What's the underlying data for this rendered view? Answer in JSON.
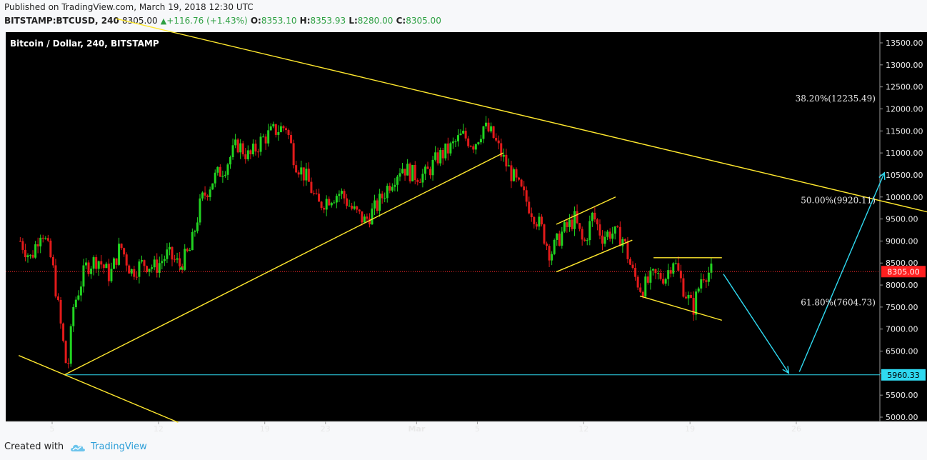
{
  "header": {
    "published": "Published on TradingView.com, March 19, 2018 12:30 UTC",
    "symbol": "BITSTAMP:BTCUSD, 240",
    "last": "8305.00",
    "change": "+116.76 (+1.43%)",
    "open_label": "O:",
    "open": "8353.10",
    "high_label": "H:",
    "high": "8353.93",
    "low_label": "L:",
    "low": "8280.00",
    "close_label": "C:",
    "close": "8305.00"
  },
  "footer": {
    "created_with": "Created with",
    "brand": "TradingView"
  },
  "colors": {
    "up": "#21d321",
    "down": "#e21a1a",
    "trend": "#ffe82e",
    "support": "#2fd9f0",
    "price_tag": "#ff1f1f",
    "background": "#000000"
  },
  "chart_data": {
    "type": "candlestick",
    "title": "Bitcoin / Dollar, 240, BITSTAMP",
    "xlabel": "",
    "ylabel": "",
    "ylim": [
      4920,
      13900
    ],
    "y_ticks": [
      5000,
      5500,
      6000,
      6500,
      7000,
      7500,
      8000,
      8500,
      9000,
      9500,
      10000,
      10500,
      11000,
      11500,
      12000,
      12500,
      13000,
      13500
    ],
    "y_tick_labels": [
      "5000.00",
      "5500.00",
      "6000.00",
      "6500.00",
      "7000.00",
      "7500.00",
      "8000.00",
      "8500.00",
      "9000.00",
      "9500.00",
      "10000.00",
      "10500.00",
      "11000.00",
      "11500.00",
      "12000.00",
      "12500.00",
      "13000.00",
      "13500.00"
    ],
    "x_day_range": [
      2.9,
      31.8
    ],
    "x_ticks": [
      {
        "day": 5,
        "label": "5"
      },
      {
        "day": 12,
        "label": "12"
      },
      {
        "day": 19,
        "label": "19"
      },
      {
        "day": 23,
        "label": "23"
      },
      {
        "day": 29,
        "label": "Mar"
      },
      {
        "day": 33,
        "label": "5"
      },
      {
        "day": 40,
        "label": "12"
      },
      {
        "day": 47,
        "label": "19"
      },
      {
        "day": 54,
        "label": "26"
      }
    ],
    "x_axis_note": "days counted from Feb 1 2018 (Mar 1 = 29)",
    "price_path": [
      [
        2.9,
        9000
      ],
      [
        3.6,
        8600
      ],
      [
        4.3,
        9300
      ],
      [
        5.0,
        8500
      ],
      [
        5.6,
        7000
      ],
      [
        6.0,
        6000
      ],
      [
        6.4,
        7500
      ],
      [
        7.2,
        8400
      ],
      [
        8.0,
        8600
      ],
      [
        8.8,
        8200
      ],
      [
        9.5,
        8900
      ],
      [
        10.2,
        8300
      ],
      [
        11.0,
        8500
      ],
      [
        11.8,
        8400
      ],
      [
        12.6,
        8700
      ],
      [
        13.4,
        8450
      ],
      [
        14.1,
        8800
      ],
      [
        14.8,
        9900
      ],
      [
        15.6,
        10400
      ],
      [
        16.4,
        10700
      ],
      [
        17.2,
        11200
      ],
      [
        18.0,
        10900
      ],
      [
        18.8,
        11300
      ],
      [
        19.6,
        11500
      ],
      [
        20.4,
        11600
      ],
      [
        21.0,
        10800
      ],
      [
        21.8,
        10400
      ],
      [
        22.5,
        9800
      ],
      [
        23.3,
        10000
      ],
      [
        24.0,
        10100
      ],
      [
        24.8,
        9700
      ],
      [
        25.6,
        9450
      ],
      [
        26.4,
        9800
      ],
      [
        27.2,
        10300
      ],
      [
        28.0,
        10700
      ],
      [
        28.8,
        10500
      ],
      [
        29.6,
        10500
      ],
      [
        30.4,
        10900
      ],
      [
        31.2,
        11100
      ],
      [
        32.0,
        11400
      ],
      [
        32.8,
        11200
      ],
      [
        33.4,
        11600
      ],
      [
        34.0,
        11400
      ],
      [
        34.8,
        10800
      ],
      [
        35.6,
        10300
      ],
      [
        36.4,
        9800
      ],
      [
        37.2,
        9300
      ],
      [
        37.8,
        8700
      ],
      [
        38.6,
        9200
      ],
      [
        39.4,
        9500
      ],
      [
        40.0,
        8900
      ],
      [
        40.6,
        9600
      ],
      [
        41.2,
        9100
      ],
      [
        41.8,
        9200
      ],
      [
        42.6,
        9050
      ],
      [
        43.2,
        8300
      ],
      [
        43.8,
        7900
      ],
      [
        44.6,
        8200
      ],
      [
        45.4,
        8200
      ],
      [
        45.9,
        8600
      ],
      [
        46.6,
        7900
      ],
      [
        47.2,
        7450
      ],
      [
        47.8,
        8250
      ],
      [
        48.4,
        8305
      ]
    ],
    "annotations": [
      {
        "text": "38.20%(12235.49)",
        "day": 59.2,
        "price": 12235.49
      },
      {
        "text": "50.00%(9920.11)",
        "day": 59.2,
        "price": 9920.11
      },
      {
        "text": "61.80%(7604.73)",
        "day": 59.2,
        "price": 7604.73
      }
    ],
    "trendlines": [
      {
        "from": [
          9.2,
          14050
        ],
        "to": [
          68,
          9220
        ]
      },
      {
        "from": [
          5.8,
          5960
        ],
        "to": [
          34.7,
          11000
        ]
      },
      {
        "from": [
          2.8,
          6400
        ],
        "to": [
          13.3,
          4880
        ]
      },
      {
        "from": [
          38.2,
          9380
        ],
        "to": [
          42.1,
          10000
        ]
      },
      {
        "from": [
          38.2,
          8300
        ],
        "to": [
          43.2,
          9020
        ]
      },
      {
        "from": [
          43.7,
          7750
        ],
        "to": [
          49.1,
          7200
        ]
      },
      {
        "from": [
          44.6,
          8620
        ],
        "to": [
          49.1,
          8620
        ]
      }
    ],
    "support_line": {
      "price": 5960.33,
      "label": "5960.33"
    },
    "last_price_line": {
      "price": 8305.0,
      "label": "8305.00"
    },
    "projection_arrows": [
      {
        "from": [
          49.2,
          8250
        ],
        "to": [
          53.5,
          6000
        ]
      },
      {
        "from": [
          54.2,
          6030
        ],
        "to": [
          59.8,
          10550
        ]
      }
    ]
  }
}
